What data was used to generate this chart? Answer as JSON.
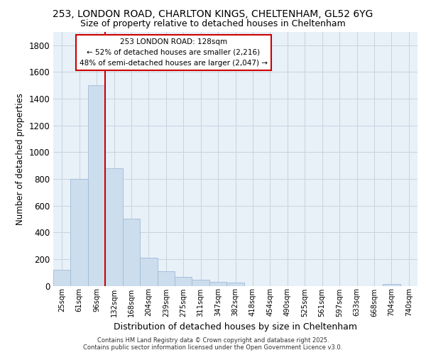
{
  "title_line1": "253, LONDON ROAD, CHARLTON KINGS, CHELTENHAM, GL52 6YG",
  "title_line2": "Size of property relative to detached houses in Cheltenham",
  "xlabel": "Distribution of detached houses by size in Cheltenham",
  "ylabel": "Number of detached properties",
  "footer_line1": "Contains HM Land Registry data © Crown copyright and database right 2025.",
  "footer_line2": "Contains public sector information licensed under the Open Government Licence v3.0.",
  "annotation_line1": "253 LONDON ROAD: 128sqm",
  "annotation_line2": "← 52% of detached houses are smaller (2,216)",
  "annotation_line3": "48% of semi-detached houses are larger (2,047) →",
  "bar_color": "#ccdded",
  "bar_edge_color": "#a0bcd8",
  "vline_color": "#cc0000",
  "annotation_box_edgecolor": "#cc0000",
  "background_color": "#e8f0f8",
  "categories": [
    "25sqm",
    "61sqm",
    "96sqm",
    "132sqm",
    "168sqm",
    "204sqm",
    "239sqm",
    "275sqm",
    "311sqm",
    "347sqm",
    "382sqm",
    "418sqm",
    "454sqm",
    "490sqm",
    "525sqm",
    "561sqm",
    "597sqm",
    "633sqm",
    "668sqm",
    "704sqm",
    "740sqm"
  ],
  "values": [
    120,
    800,
    1500,
    880,
    500,
    210,
    110,
    65,
    45,
    30,
    25,
    0,
    0,
    0,
    0,
    0,
    0,
    0,
    0,
    15,
    0
  ],
  "ylim": [
    0,
    1900
  ],
  "yticks": [
    0,
    200,
    400,
    600,
    800,
    1000,
    1200,
    1400,
    1600,
    1800
  ],
  "vline_x": 2.5,
  "grid_color": "#c8d4e0"
}
